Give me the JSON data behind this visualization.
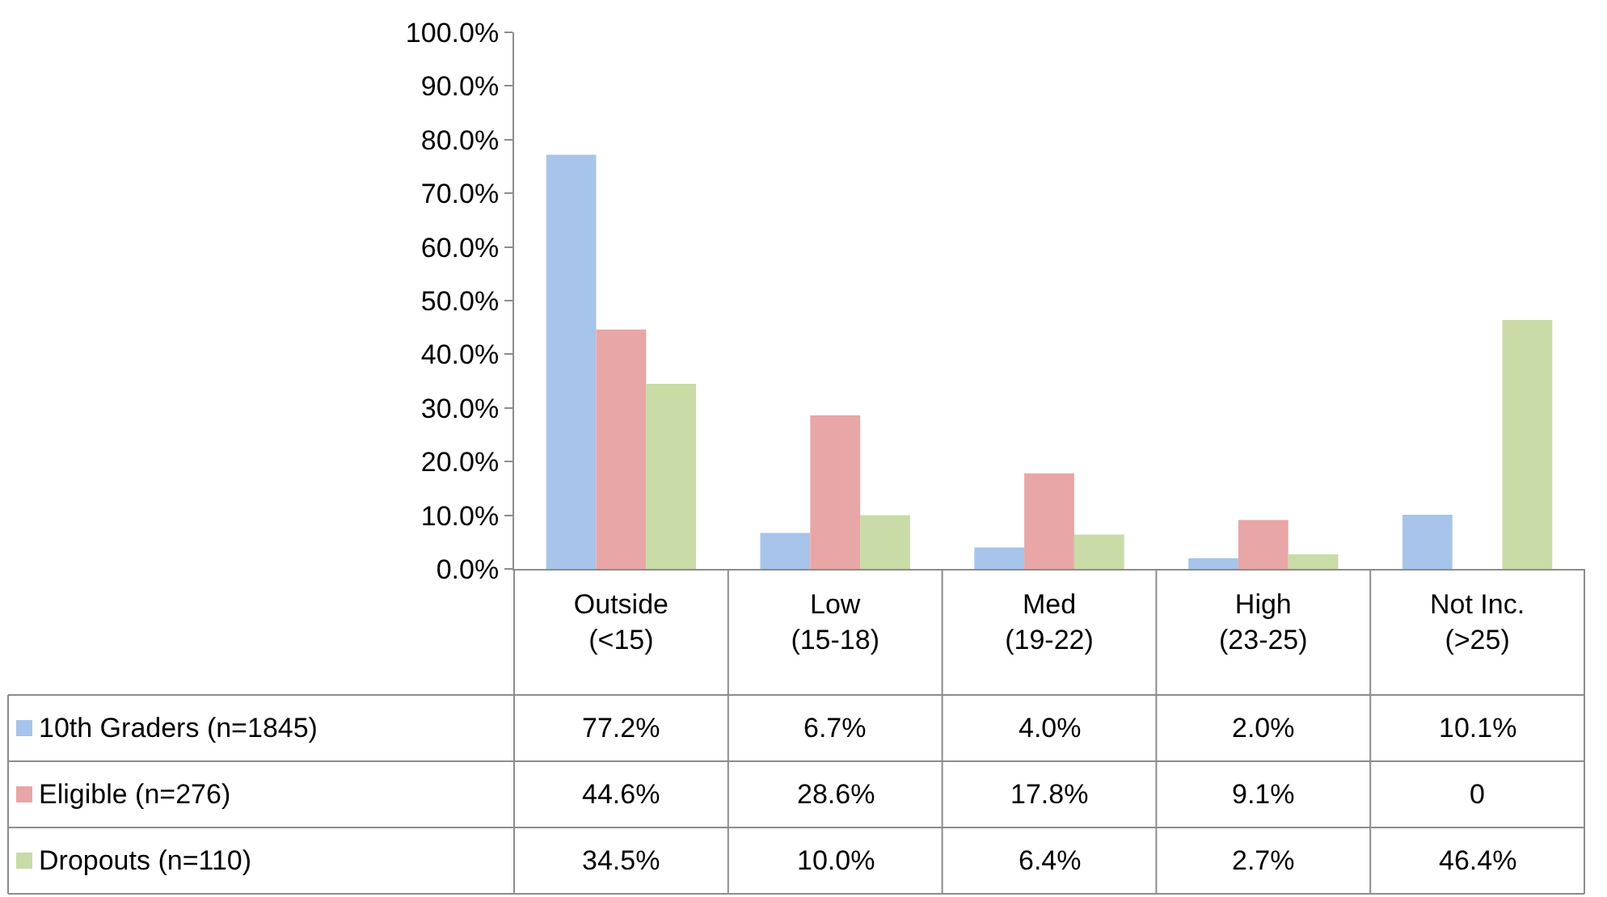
{
  "chart_data": {
    "type": "bar",
    "categories": [
      "Outside\n(<15)",
      "Low\n(15-18)",
      "Med\n(19-22)",
      "High\n(23-25)",
      "Not Inc.\n(>25)"
    ],
    "series": [
      {
        "name": "10th Graders (n=1845)",
        "color": "#a7c4ea",
        "values": [
          77.2,
          6.7,
          4.0,
          2.0,
          10.1
        ],
        "value_labels": [
          "77.2%",
          "6.7%",
          "4.0%",
          "2.0%",
          "10.1%"
        ]
      },
      {
        "name": "Eligible (n=276)",
        "color": "#e8a6a6",
        "values": [
          44.6,
          28.6,
          17.8,
          9.1,
          0
        ],
        "value_labels": [
          "44.6%",
          "28.6%",
          "17.8%",
          "9.1%",
          "0"
        ]
      },
      {
        "name": "Dropouts (n=110)",
        "color": "#c9dba6",
        "values": [
          34.5,
          10.0,
          6.4,
          2.7,
          46.4
        ],
        "value_labels": [
          "34.5%",
          "10.0%",
          "6.4%",
          "2.7%",
          "46.4%"
        ]
      }
    ],
    "ylim": [
      0,
      100
    ],
    "yticks": [
      {
        "value": 0,
        "label": "0.0%"
      },
      {
        "value": 10,
        "label": "10.0%"
      },
      {
        "value": 20,
        "label": "20.0%"
      },
      {
        "value": 30,
        "label": "30.0%"
      },
      {
        "value": 40,
        "label": "40.0%"
      },
      {
        "value": 50,
        "label": "50.0%"
      },
      {
        "value": 60,
        "label": "60.0%"
      },
      {
        "value": 70,
        "label": "70.0%"
      },
      {
        "value": 80,
        "label": "80.0%"
      },
      {
        "value": 90,
        "label": "90.0%"
      },
      {
        "value": 100,
        "label": "100.0%"
      }
    ],
    "legend": "bottom"
  }
}
